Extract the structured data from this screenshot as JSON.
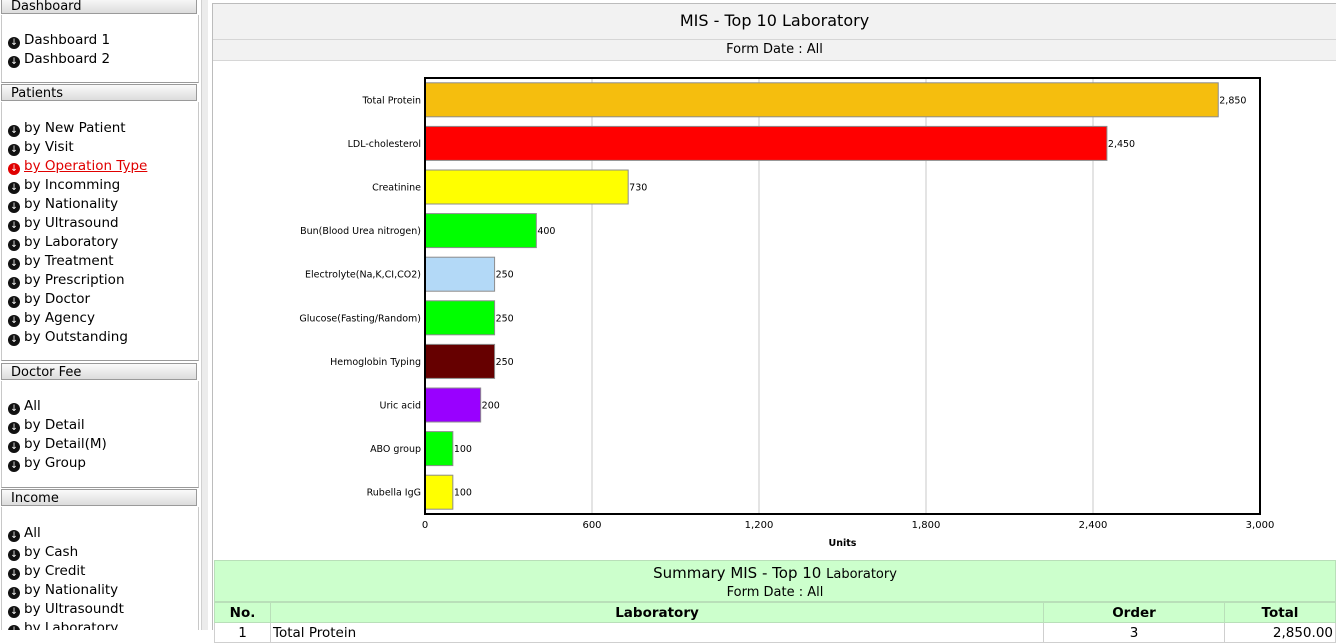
{
  "sidebar": {
    "sections": [
      {
        "title": "Dashboard",
        "items": [
          "Dashboard 1",
          "Dashboard 2"
        ]
      },
      {
        "title": "Patients",
        "items": [
          "by New Patient",
          "by Visit",
          "by Operation Type",
          "by Incomming",
          "by Nationality",
          "by Ultrasound",
          "by Laboratory",
          "by Treatment",
          "by Prescription",
          "by Doctor",
          "by Agency",
          "by Outstanding"
        ],
        "active": "by Operation Type"
      },
      {
        "title": "Doctor Fee",
        "items": [
          "All",
          "by Detail",
          "by Detail(M)",
          "by Group"
        ]
      },
      {
        "title": "Income",
        "items": [
          "All",
          "by Cash",
          "by Credit",
          "by Nationality",
          "by Ultrasoundt",
          "by Laboratory"
        ]
      }
    ]
  },
  "report": {
    "title": "MIS - Top 10 Laboratory",
    "form_date": "Form Date : All"
  },
  "chart_data": {
    "type": "bar",
    "orientation": "horizontal",
    "categories": [
      "Total Protein",
      "LDL-cholesterol",
      "Creatinine",
      "Bun(Blood Urea nitrogen)",
      "Electrolyte(Na,K,CI,CO2)",
      "Glucose(Fasting/Random)",
      "Hemoglobin Typing",
      "Uric acid",
      "ABO group",
      "Rubella IgG"
    ],
    "values": [
      2850,
      2450,
      730,
      400,
      250,
      250,
      250,
      200,
      100,
      100
    ],
    "value_labels": [
      "2,850",
      "2,450",
      "730",
      "400",
      "250",
      "250",
      "250",
      "200",
      "100",
      "100"
    ],
    "colors": [
      "#f5be0e",
      "#ff0000",
      "#ffff00",
      "#00ff00",
      "#b3d9f7",
      "#00ff00",
      "#660000",
      "#9900ff",
      "#00ff00",
      "#ffff00"
    ],
    "xlabel": "Units",
    "xlim": [
      0,
      3000
    ],
    "ticks": [
      0,
      600,
      1200,
      1800,
      2400,
      3000
    ],
    "tick_labels": [
      "0",
      "600",
      "1,200",
      "1,800",
      "2,400",
      "3,000"
    ],
    "grid": true
  },
  "summary": {
    "title": "Summary MIS - Top 10",
    "title_suffix": "Laboratory",
    "form_date": "Form Date : All",
    "columns": [
      "No.",
      "Laboratory",
      "Order",
      "Total"
    ],
    "rows": [
      {
        "no": "1",
        "laboratory": "Total Protein",
        "order": "3",
        "total": "2,850.00"
      }
    ]
  }
}
